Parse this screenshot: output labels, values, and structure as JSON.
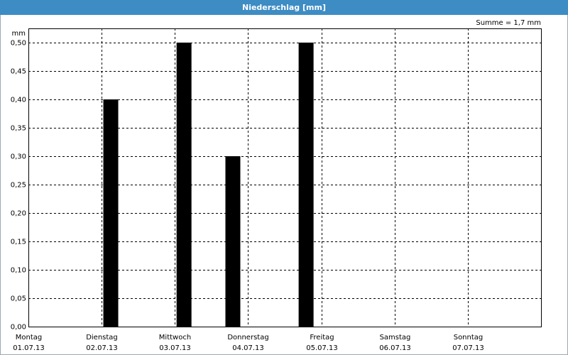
{
  "chart_data": {
    "type": "bar",
    "title": "Niederschlag [mm]",
    "y_label": "mm",
    "annotation": "Summe = 1,7 mm",
    "x": [
      1.125,
      2.125,
      2.792,
      3.792
    ],
    "values": [
      0.4,
      0.5,
      0.3,
      0.5
    ],
    "color": "#000000",
    "xlim": [
      0,
      7
    ],
    "xticks": [
      {
        "value": 0,
        "label": "Montag",
        "date": "01.07.13"
      },
      {
        "value": 1,
        "label": "Dienstag",
        "date": "02.07.13"
      },
      {
        "value": 2,
        "label": "Mittwoch",
        "date": "03.07.13"
      },
      {
        "value": 3,
        "label": "Donnerstag",
        "date": "04.07.13"
      },
      {
        "value": 4,
        "label": "Freitag",
        "date": "05.07.13"
      },
      {
        "value": 5,
        "label": "Samstag",
        "date": "06.07.13"
      },
      {
        "value": 6,
        "label": "Sonntag",
        "date": "07.07.13"
      }
    ],
    "ylim": [
      0,
      0.525
    ],
    "yticks": [
      {
        "value": 0,
        "label": "0,00"
      },
      {
        "value": 0.05,
        "label": "0,05"
      },
      {
        "value": 0.1,
        "label": "0,10"
      },
      {
        "value": 0.15,
        "label": "0,15"
      },
      {
        "value": 0.2,
        "label": "0,20"
      },
      {
        "value": 0.25,
        "label": "0,25"
      },
      {
        "value": 0.3,
        "label": "0,30"
      },
      {
        "value": 0.35,
        "label": "0,35"
      },
      {
        "value": 0.4,
        "label": "0,40"
      },
      {
        "value": 0.45,
        "label": "0,45"
      },
      {
        "value": 0.5,
        "label": "0,50"
      }
    ],
    "grid": true
  }
}
